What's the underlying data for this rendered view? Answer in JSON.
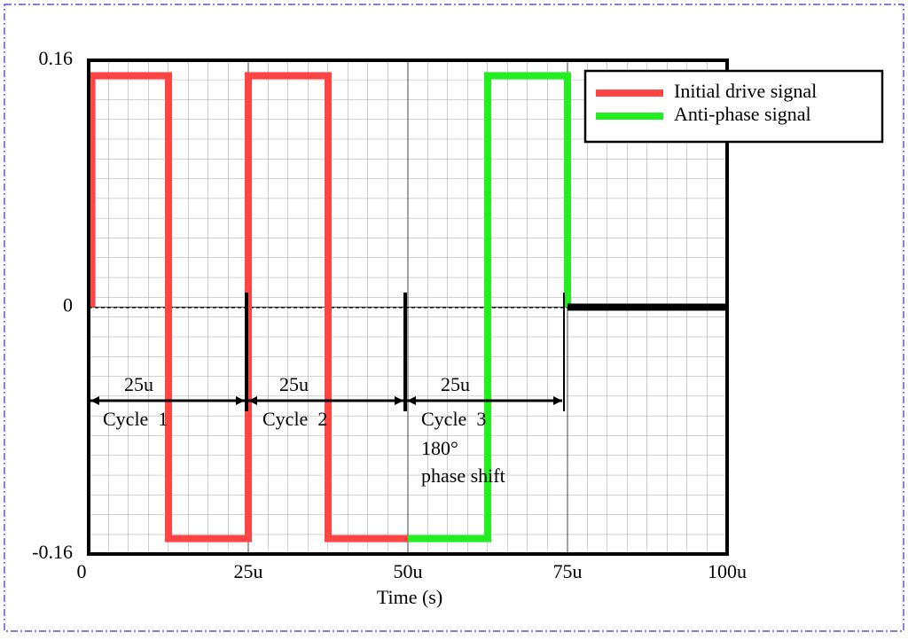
{
  "chart_data": {
    "type": "line",
    "x_label": "Time (s)",
    "xlim": [
      0,
      0.0001
    ],
    "xticks": [
      0,
      {
        "value": 2.5e-05,
        "label": "25u"
      },
      {
        "value": 5e-05,
        "label": "50u"
      },
      {
        "value": 7.5e-05,
        "label": "75u"
      },
      {
        "value": 0.0001,
        "label": "100u"
      }
    ],
    "ylim": [
      -0.16,
      0.16
    ],
    "yticks": [
      0.16,
      0,
      -0.16
    ],
    "grid": true,
    "legend": "upper right",
    "series": [
      {
        "name": "Initial drive signal",
        "color": "#ff4444",
        "x": [
          5e-07,
          5e-07,
          1.25e-05,
          1.25e-05,
          2.5e-05,
          2.5e-05,
          3.75e-05,
          3.75e-05,
          5e-05
        ],
        "values": [
          0,
          0.15,
          0.15,
          -0.15,
          -0.15,
          0.15,
          0.15,
          -0.15,
          -0.15
        ]
      },
      {
        "name": "Anti-phase signal",
        "color": "#22ee22",
        "x": [
          5e-05,
          6.25e-05,
          6.25e-05,
          7.5e-05,
          7.5e-05
        ],
        "values": [
          -0.15,
          -0.15,
          0.15,
          0.15,
          0
        ]
      },
      {
        "color": "#000000",
        "x": [
          7.5e-05,
          0.0001
        ],
        "values": [
          0,
          0
        ]
      }
    ],
    "annotations": [
      "25u",
      "25u",
      "25u",
      "Cycle  1",
      "Cycle  2",
      "Cycle  3",
      "180°",
      "phase shift"
    ]
  }
}
